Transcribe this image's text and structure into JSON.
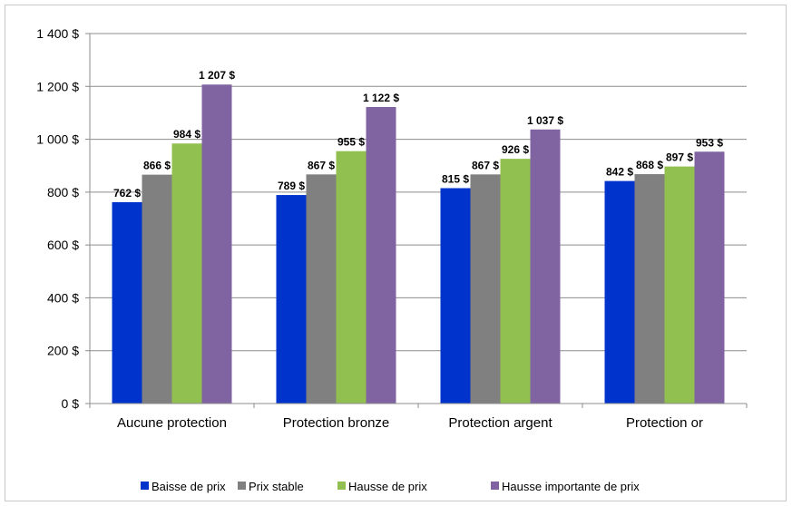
{
  "chart_data": {
    "type": "bar",
    "categories": [
      "Aucune protection",
      "Protection bronze",
      "Protection argent",
      "Protection or"
    ],
    "series": [
      {
        "name": "Baisse de prix",
        "color": "#0033cc",
        "values": [
          762,
          789,
          815,
          842
        ],
        "labels": [
          "762 $",
          "789 $",
          "815 $",
          "842 $"
        ]
      },
      {
        "name": "Prix stable",
        "color": "#808080",
        "values": [
          866,
          867,
          867,
          868
        ],
        "labels": [
          "866 $",
          "867 $",
          "867 $",
          "868 $"
        ]
      },
      {
        "name": "Hausse de prix",
        "color": "#92c050",
        "values": [
          984,
          955,
          926,
          897
        ],
        "labels": [
          "984 $",
          "955 $",
          "926 $",
          "897 $"
        ]
      },
      {
        "name": "Hausse importante de prix",
        "color": "#8064a2",
        "values": [
          1207,
          1122,
          1037,
          953
        ],
        "labels": [
          "1 207 $",
          "1 122 $",
          "1 037 $",
          "953 $"
        ]
      }
    ],
    "ylim": [
      0,
      1400
    ],
    "yticks": [
      0,
      200,
      400,
      600,
      800,
      1000,
      1200,
      1400
    ],
    "ytick_labels": [
      "0 $",
      "200 $",
      "400 $",
      "600 $",
      "800 $",
      "1 000 $",
      "1 200 $",
      "1 400 $"
    ],
    "grid": true,
    "legend_position": "bottom"
  }
}
